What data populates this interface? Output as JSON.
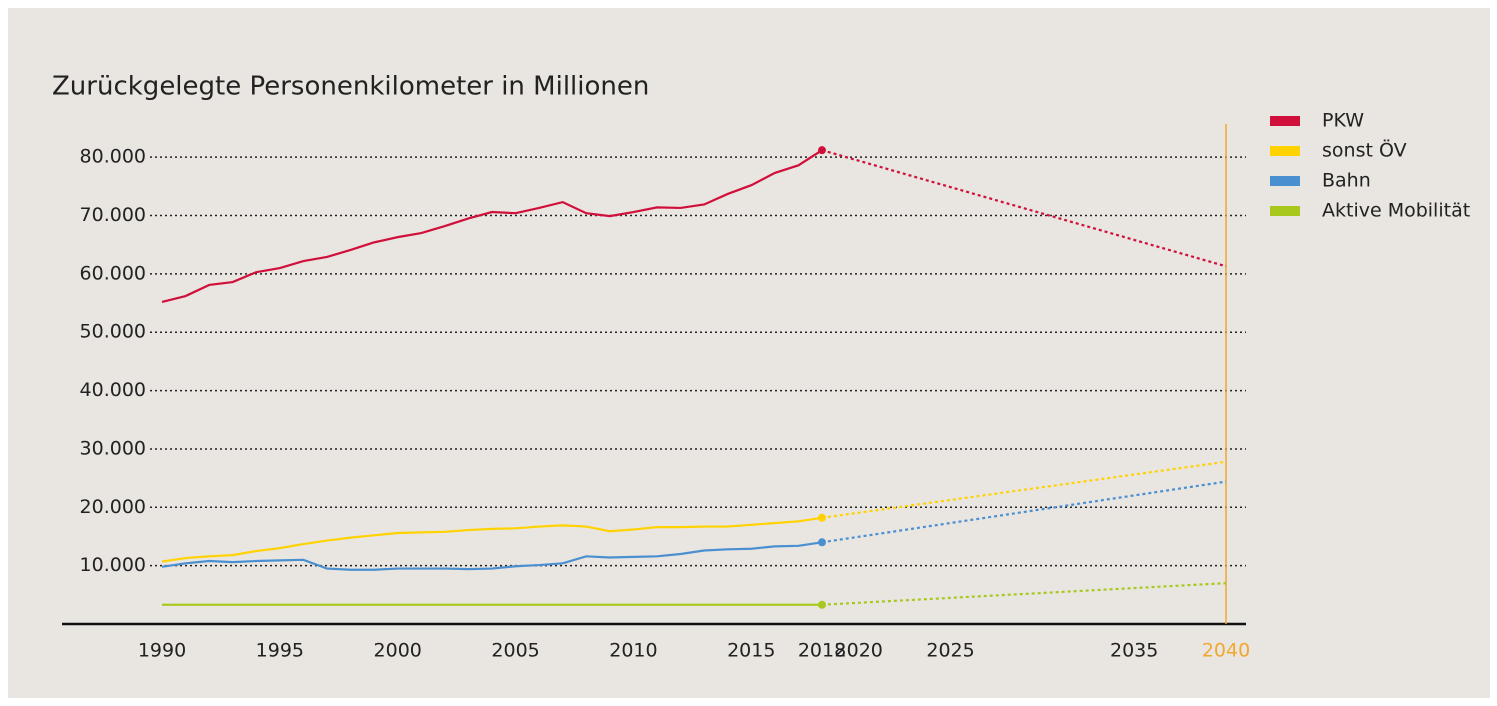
{
  "chart_data": {
    "type": "line",
    "title": "Zurückgelegte Personenkilometer in Millionen",
    "x": [
      1990,
      1991,
      1992,
      1993,
      1994,
      1995,
      1996,
      1997,
      1998,
      1999,
      2000,
      2001,
      2002,
      2003,
      2004,
      2005,
      2006,
      2007,
      2008,
      2009,
      2010,
      2011,
      2012,
      2013,
      2014,
      2015,
      2016,
      2017,
      2018,
      2040
    ],
    "series": [
      {
        "name": "PKW",
        "color": "#d0103a",
        "values": [
          55200,
          56200,
          58100,
          58600,
          60300,
          61000,
          62200,
          62900,
          64100,
          65400,
          66300,
          67000,
          68200,
          69500,
          70600,
          70400,
          71300,
          72300,
          70400,
          69900,
          70600,
          71400,
          71300,
          71900,
          73700,
          75200,
          77300,
          78600,
          81200,
          61300
        ]
      },
      {
        "name": "sonst ÖV",
        "color": "#ffd200",
        "values": [
          10700,
          11300,
          11600,
          11800,
          12500,
          13000,
          13700,
          14300,
          14800,
          15200,
          15600,
          15700,
          15800,
          16100,
          16300,
          16400,
          16700,
          16900,
          16700,
          15900,
          16200,
          16600,
          16600,
          16700,
          16700,
          17000,
          17300,
          17600,
          18200,
          27800
        ]
      },
      {
        "name": "Bahn",
        "color": "#4a90d0",
        "values": [
          9800,
          10400,
          10800,
          10600,
          10800,
          10900,
          11000,
          9500,
          9300,
          9300,
          9500,
          9500,
          9500,
          9400,
          9500,
          9900,
          10100,
          10400,
          11600,
          11400,
          11500,
          11600,
          12000,
          12600,
          12800,
          12900,
          13300,
          13400,
          14000,
          24400
        ]
      },
      {
        "name": "Aktive Mobilität",
        "color": "#a8c81e",
        "values": [
          3300,
          3300,
          3300,
          3300,
          3300,
          3300,
          3300,
          3300,
          3300,
          3300,
          3300,
          3300,
          3300,
          3300,
          3300,
          3300,
          3300,
          3300,
          3300,
          3300,
          3300,
          3300,
          3300,
          3300,
          3300,
          3300,
          3300,
          3300,
          3300,
          7000
        ]
      }
    ],
    "ylim": [
      0,
      85000
    ],
    "yticks": [
      {
        "value": 10000,
        "label": "10.000"
      },
      {
        "value": 20000,
        "label": "20.000"
      },
      {
        "value": 30000,
        "label": "30.000"
      },
      {
        "value": 40000,
        "label": "40.000"
      },
      {
        "value": 50000,
        "label": "50.000"
      },
      {
        "value": 60000,
        "label": "60.000"
      },
      {
        "value": 70000,
        "label": "70.000"
      },
      {
        "value": 80000,
        "label": "80.000"
      }
    ],
    "xticks": [
      1990,
      1995,
      2000,
      2005,
      2010,
      2015,
      2018,
      2020,
      2025,
      2035,
      2040
    ],
    "grid": true,
    "dashed_last_segment": true,
    "legend": "right",
    "marker_line": {
      "x": 2040,
      "color": "#f0a830"
    }
  }
}
